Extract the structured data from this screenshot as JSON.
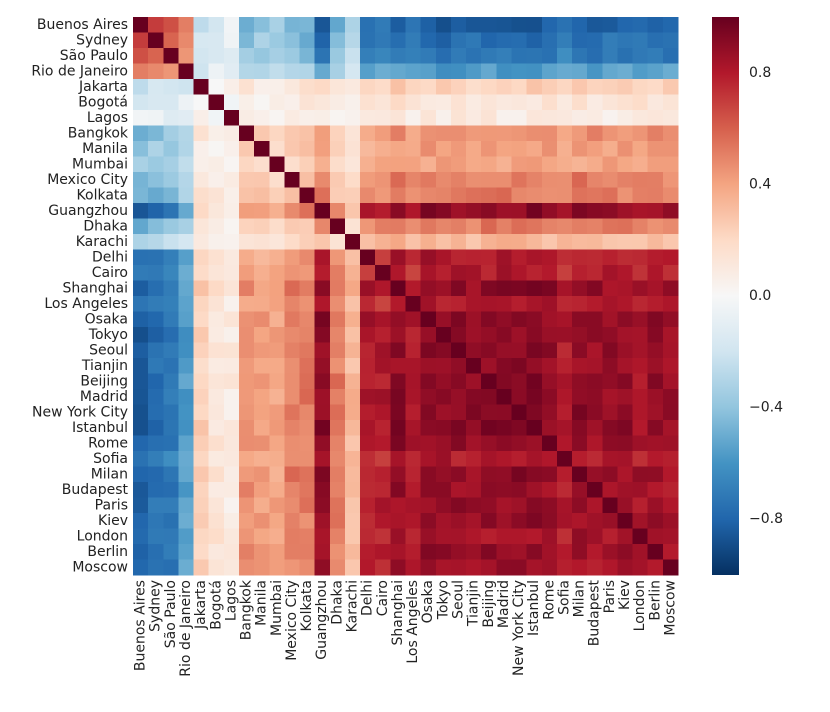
{
  "chart_data": {
    "type": "heatmap",
    "title": "",
    "xlabel": "",
    "ylabel": "",
    "value_range": [
      -1.0,
      1.0
    ],
    "colormap": "RdBu_r",
    "colormap_stops": [
      "#053061",
      "#2166ac",
      "#4393c3",
      "#92c5de",
      "#d1e5f0",
      "#f7f7f7",
      "#fddbc7",
      "#f4a582",
      "#d6604d",
      "#b2182b",
      "#67001f"
    ],
    "colorbar_ticks": [
      "0.8",
      "0.4",
      "0.0",
      "−0.4",
      "−0.8"
    ],
    "colorbar_tick_values": [
      0.8,
      0.4,
      0.0,
      -0.4,
      -0.8
    ],
    "labels": [
      "Buenos Aires",
      "Sydney",
      "São Paulo",
      "Rio de Janeiro",
      "Jakarta",
      "Bogotá",
      "Lagos",
      "Bangkok",
      "Manila",
      "Mumbai",
      "Mexico City",
      "Kolkata",
      "Guangzhou",
      "Dhaka",
      "Karachi",
      "Delhi",
      "Cairo",
      "Shanghai",
      "Los Angeles",
      "Osaka",
      "Tokyo",
      "Seoul",
      "Tianjin",
      "Beijing",
      "Madrid",
      "New York City",
      "Istanbul",
      "Rome",
      "Sofia",
      "Milan",
      "Budapest",
      "Paris",
      "Kiev",
      "London",
      "Berlin",
      "Moscow"
    ],
    "factors": [
      -0.9,
      -0.82,
      -0.78,
      -0.6,
      0.25,
      0.15,
      0.1,
      0.5,
      0.45,
      0.42,
      0.55,
      0.55,
      0.95,
      0.55,
      0.35,
      0.85,
      0.85,
      0.95,
      0.85,
      0.96,
      0.95,
      0.95,
      0.93,
      0.95,
      0.95,
      0.95,
      0.96,
      0.94,
      0.85,
      0.95,
      0.92,
      0.92,
      0.92,
      0.88,
      0.92,
      0.9
    ]
  }
}
